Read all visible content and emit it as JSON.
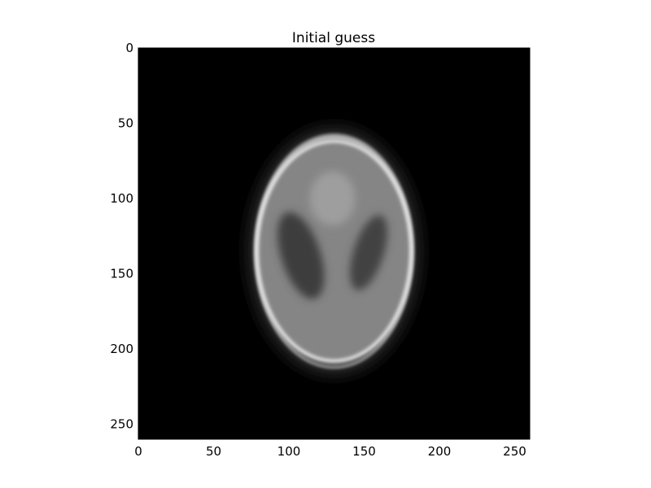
{
  "chart_data": {
    "type": "heatmap",
    "title": "Initial guess",
    "xlabel": "",
    "ylabel": "",
    "colormap": "grayscale",
    "xlim": [
      0,
      260
    ],
    "ylim": [
      260,
      0
    ],
    "x_ticks": [
      0,
      50,
      100,
      150,
      200,
      250
    ],
    "y_ticks": [
      0,
      50,
      100,
      150,
      200,
      250
    ],
    "x_tick_labels": [
      "0",
      "50",
      "100",
      "150",
      "200",
      "250"
    ],
    "y_tick_labels": [
      "0",
      "50",
      "100",
      "150",
      "200",
      "250"
    ],
    "background_color": "#000000",
    "phantom": {
      "center": [
        130,
        135
      ],
      "skull_outer_semi_axes": [
        53,
        78
      ],
      "skull_inner_semi_axes": [
        50,
        72
      ],
      "brain_intensity": 0.52,
      "skull_intensity": 0.92,
      "left_lobe": {
        "center": [
          108,
          138
        ],
        "semi_axes": [
          13,
          30
        ],
        "tilt_deg": -18,
        "intensity": 0.24
      },
      "right_lobe": {
        "center": [
          153,
          136
        ],
        "semi_axes": [
          10,
          26
        ],
        "tilt_deg": 18,
        "intensity": 0.26
      },
      "top_blob": {
        "center": [
          129,
          100
        ],
        "semi_axes": [
          15,
          18
        ],
        "intensity": 0.62
      }
    }
  }
}
